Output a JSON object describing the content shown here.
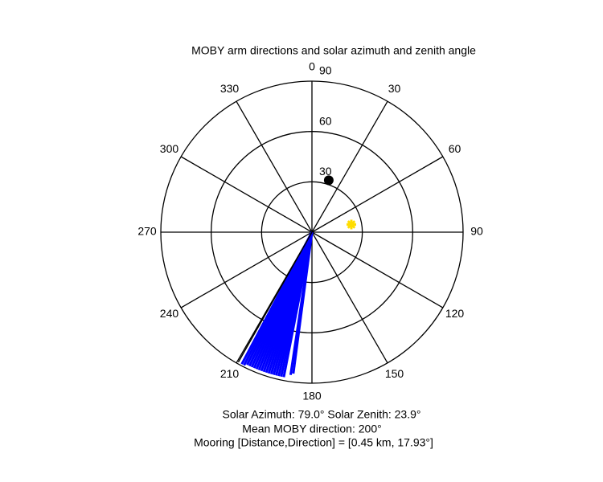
{
  "chart_data": {
    "type": "polar",
    "title": "MOBY arm directions and solar azimuth and zenith angle",
    "rlim": [
      0,
      90
    ],
    "rticks": [
      30,
      60,
      90
    ],
    "thetaticks": [
      0,
      30,
      60,
      90,
      120,
      150,
      180,
      210,
      240,
      270,
      300,
      330
    ],
    "theta_zero": "top",
    "theta_direction": "clockwise",
    "arms": {
      "color": "#0000ff",
      "theta": [
        187.5,
        188.5,
        191,
        192,
        193,
        194,
        195,
        196,
        197,
        198,
        199,
        200,
        201,
        202,
        203,
        204,
        205,
        206,
        207,
        208
      ],
      "r": [
        85,
        86,
        88,
        88,
        88,
        88,
        88,
        88,
        88,
        88,
        88,
        88,
        88,
        88,
        88,
        88,
        88,
        88,
        89,
        89
      ]
    },
    "reference_arm": {
      "color": "#000000",
      "theta": 209.5,
      "r": 89
    },
    "mooring": {
      "color": "#000000",
      "theta": 17.93,
      "r": 32.5
    },
    "sun": {
      "color": "#ffdd00",
      "theta": 79.0,
      "r": 23.9
    },
    "footer": [
      "Solar Azimuth: 79.0°   Solar Zenith: 23.9°",
      "Mean MOBY direction: 200°",
      "Mooring [Distance,Direction] = [0.45 km, 17.93°]"
    ]
  }
}
